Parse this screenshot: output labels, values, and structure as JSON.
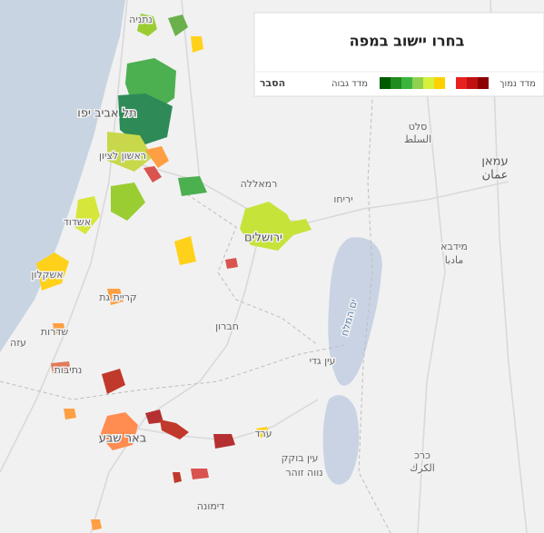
{
  "panel": {
    "title": "בחרו יישוב במפה",
    "explain": "הסבר",
    "legend_high": "מדד גבוה",
    "legend_low": "מדד נמוך",
    "high_colors": [
      "#005a00",
      "#1e8c1e",
      "#3cb43c",
      "#8fd14f",
      "#d6f03c",
      "#ffd000"
    ],
    "low_colors": [
      "#e82020",
      "#c01010",
      "#8b0000"
    ]
  },
  "places": [
    "נתניה",
    "תל אביב יפו",
    "ראשון לציון",
    "אשדוד",
    "אשקלון",
    "קריית גת",
    "שדרות",
    "עזה",
    "נתיבות",
    "באר שבע",
    "ערד",
    "דימונה",
    "רמאללה",
    "יריחו",
    "ירושלים",
    "חברון",
    "סלט",
    "السلط",
    "עמאן",
    "عمان",
    "מידבא",
    "مادبا",
    "ים המלח",
    "עין גדי",
    "עין בוקק",
    "נווה זוהר",
    "כרכ",
    "الكرك"
  ]
}
